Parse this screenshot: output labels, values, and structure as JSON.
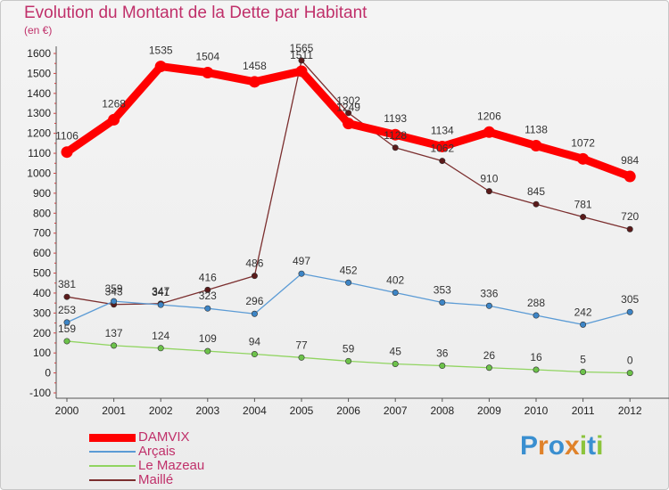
{
  "header": {
    "title": "Evolution du Montant de la Dette par Habitant",
    "unit": "(en €)"
  },
  "logo": {
    "letters": [
      "P",
      "r",
      "o",
      "x",
      "i",
      "t",
      "i"
    ],
    "colors": [
      "#3a8fd0",
      "#e0822a",
      "#3a8fd0",
      "#e0822a",
      "#8cc43c",
      "#3a8fd0",
      "#8cc43c"
    ]
  },
  "chart_data": {
    "type": "line",
    "title": "Evolution du Montant de la Dette par Habitant",
    "subtitle": "(en €)",
    "x": [
      2000,
      2001,
      2002,
      2003,
      2004,
      2005,
      2006,
      2007,
      2008,
      2009,
      2010,
      2011,
      2012
    ],
    "ylim": [
      -100,
      1600
    ],
    "yticks": [
      -100,
      0,
      100,
      200,
      300,
      400,
      500,
      600,
      700,
      800,
      900,
      1000,
      1100,
      1200,
      1300,
      1400,
      1500,
      1600
    ],
    "grid": false,
    "legend_position": "bottom-left",
    "series": [
      {
        "name": "DAMVIX",
        "color": "#ff0000",
        "values": [
          1106,
          1268,
          1535,
          1504,
          1458,
          1511,
          1249,
          1193,
          1134,
          1206,
          1138,
          1072,
          984
        ],
        "labels": [
          "1106",
          "1268",
          "1535",
          "1504",
          "1458",
          "1511",
          "1249",
          "1193",
          "1134",
          "1206",
          "1138",
          "1072",
          "984"
        ]
      },
      {
        "name": "Arçais",
        "color": "#5b9bd5",
        "values": [
          253,
          359,
          341,
          323,
          296,
          497,
          452,
          402,
          353,
          336,
          288,
          242,
          305
        ],
        "labels": [
          "253",
          "359",
          "341",
          "323",
          "296",
          "497",
          "452",
          "402",
          "353",
          "336",
          "288",
          "242",
          "305"
        ]
      },
      {
        "name": "Le Mazeau",
        "color": "#90d460",
        "values": [
          159,
          137,
          124,
          109,
          94,
          77,
          59,
          45,
          36,
          26,
          16,
          5,
          0
        ],
        "labels": [
          "159",
          "137",
          "124",
          "109",
          "94",
          "77",
          "59",
          "45",
          "36",
          "26",
          "16",
          "5",
          "0"
        ]
      },
      {
        "name": "Maillé",
        "color": "#7b2e2e",
        "values": [
          381,
          343,
          347,
          416,
          486,
          1565,
          1302,
          1128,
          1062,
          910,
          845,
          781,
          720
        ],
        "labels": [
          "381",
          "343",
          "347",
          "416",
          "486",
          "1565",
          "1302",
          "1128",
          "1062",
          "910",
          "845",
          "781",
          "720"
        ]
      }
    ]
  }
}
